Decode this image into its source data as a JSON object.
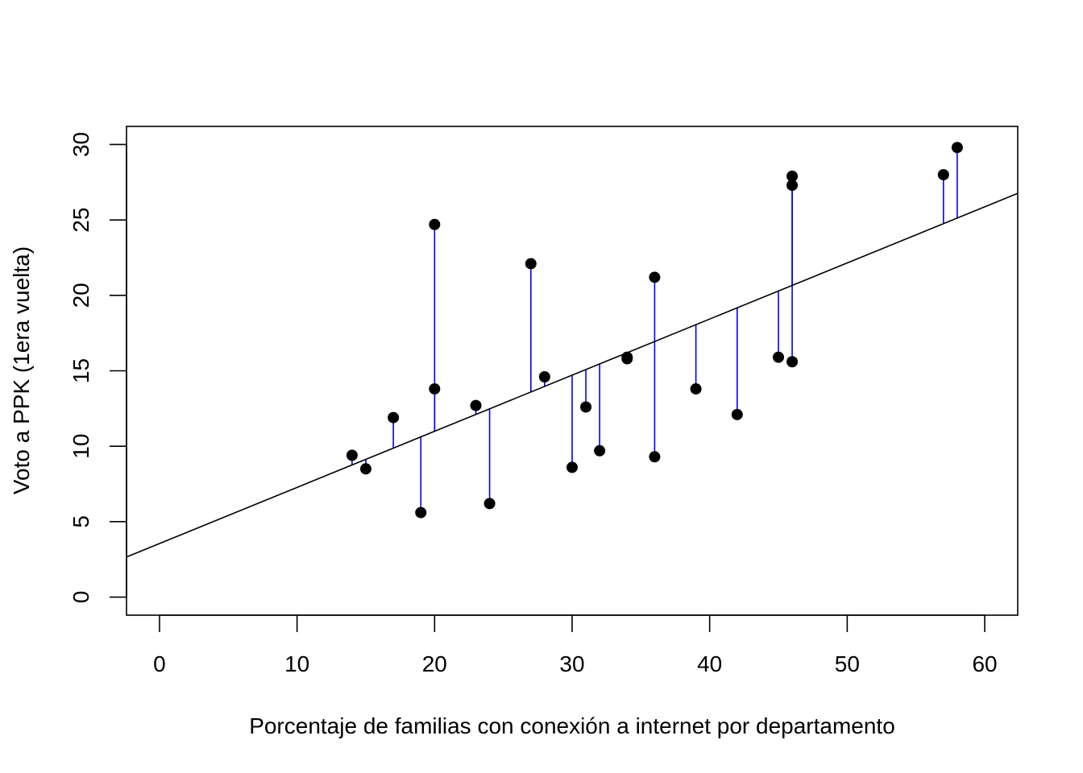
{
  "chart_data": {
    "type": "scatter",
    "title": "",
    "xlabel": "Porcentaje de familias con conexión a internet por departamento",
    "ylabel": "Voto a PPK (1era vuelta)",
    "xlim": [
      -2.4,
      62.4
    ],
    "ylim": [
      -1.2,
      31.2
    ],
    "x_ticks": [
      "0",
      "10",
      "20",
      "30",
      "40",
      "50",
      "60"
    ],
    "y_ticks": [
      "0",
      "5",
      "10",
      "15",
      "20",
      "25",
      "30"
    ],
    "regression_line": {
      "intercept": 3.55,
      "slope": 0.372
    },
    "residual_color": "#0000ff",
    "point_color": "#000000",
    "points": [
      {
        "x": 14,
        "y": 9.4
      },
      {
        "x": 15,
        "y": 8.5
      },
      {
        "x": 17,
        "y": 11.9
      },
      {
        "x": 19,
        "y": 5.6
      },
      {
        "x": 20,
        "y": 24.7
      },
      {
        "x": 20,
        "y": 13.8
      },
      {
        "x": 23,
        "y": 12.7
      },
      {
        "x": 24,
        "y": 6.2
      },
      {
        "x": 27,
        "y": 22.1
      },
      {
        "x": 28,
        "y": 14.6
      },
      {
        "x": 30,
        "y": 8.6
      },
      {
        "x": 31,
        "y": 12.6
      },
      {
        "x": 32,
        "y": 9.7
      },
      {
        "x": 34,
        "y": 15.8
      },
      {
        "x": 34,
        "y": 15.9
      },
      {
        "x": 36,
        "y": 21.2
      },
      {
        "x": 36,
        "y": 9.3
      },
      {
        "x": 39,
        "y": 13.8
      },
      {
        "x": 42,
        "y": 12.1
      },
      {
        "x": 45,
        "y": 15.9
      },
      {
        "x": 46,
        "y": 27.9
      },
      {
        "x": 46,
        "y": 27.3
      },
      {
        "x": 46,
        "y": 15.6
      },
      {
        "x": 57,
        "y": 28.0
      },
      {
        "x": 58,
        "y": 29.8
      }
    ]
  }
}
